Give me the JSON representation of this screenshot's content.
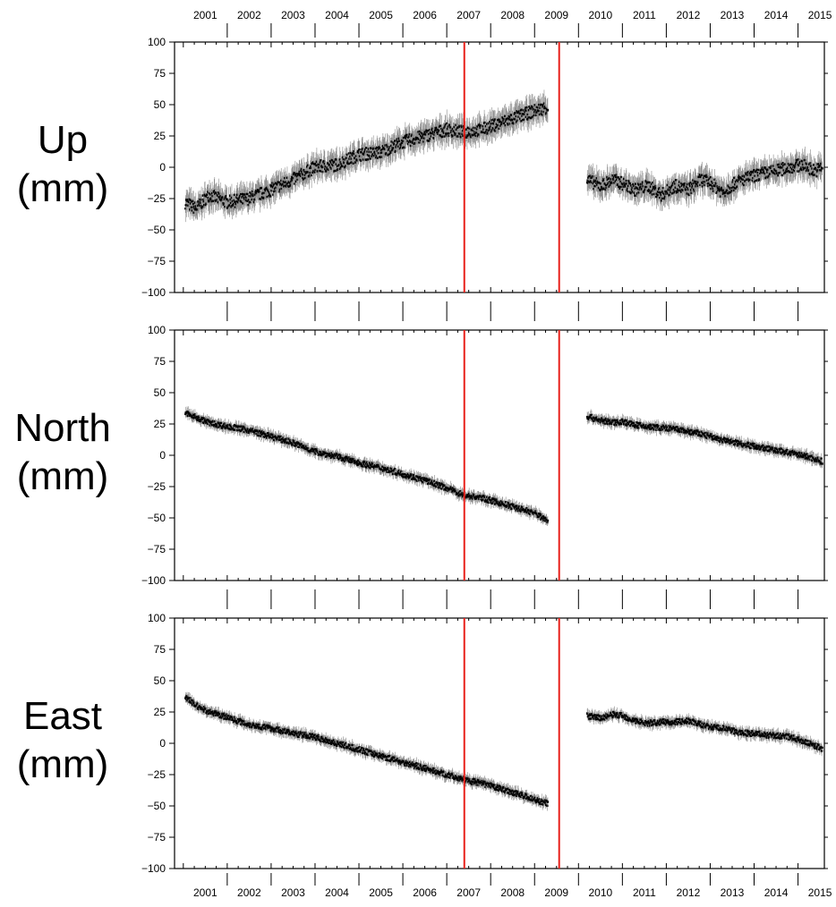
{
  "chart_data": [
    {
      "type": "scatter",
      "panel_label": [
        "Up",
        "(mm)"
      ],
      "ylim": [
        -100,
        100
      ],
      "yticks": [
        -100,
        -75,
        -50,
        -25,
        0,
        25,
        50,
        75,
        100
      ],
      "error_bars": true,
      "series": [
        {
          "x": [
            2001.05,
            2001.3,
            2001.6,
            2002.0,
            2002.5,
            2003.0,
            2003.5,
            2004.0,
            2004.5,
            2005.0,
            2005.5,
            2006.0,
            2006.5,
            2007.0,
            2007.4,
            2007.8,
            2008.2,
            2008.6,
            2009.0,
            2009.3
          ],
          "y": [
            -28,
            -33,
            -22,
            -28,
            -25,
            -18,
            -10,
            0,
            2,
            10,
            12,
            20,
            25,
            30,
            28,
            30,
            35,
            40,
            45,
            48
          ]
        },
        {
          "x": [
            2010.2,
            2010.5,
            2010.8,
            2011.0,
            2011.3,
            2011.6,
            2011.9,
            2012.2,
            2012.5,
            2012.8,
            2013.0,
            2013.3,
            2013.6,
            2013.9,
            2014.2,
            2014.5,
            2014.8,
            2015.1,
            2015.4,
            2015.55
          ],
          "y": [
            -10,
            -15,
            -10,
            -13,
            -18,
            -15,
            -22,
            -15,
            -18,
            -10,
            -12,
            -20,
            -12,
            -8,
            -5,
            -3,
            0,
            2,
            -3,
            0
          ]
        }
      ]
    },
    {
      "type": "scatter",
      "panel_label": [
        "North",
        "(mm)"
      ],
      "ylim": [
        -100,
        100
      ],
      "yticks": [
        -100,
        -75,
        -50,
        -25,
        0,
        25,
        50,
        75,
        100
      ],
      "error_bars": true,
      "series": [
        {
          "x": [
            2001.05,
            2001.3,
            2001.6,
            2002.0,
            2002.5,
            2003.0,
            2003.5,
            2004.0,
            2004.5,
            2005.0,
            2005.5,
            2006.0,
            2006.5,
            2007.0,
            2007.4,
            2007.8,
            2008.2,
            2008.6,
            2009.0,
            2009.3
          ],
          "y": [
            34,
            30,
            26,
            23,
            20,
            15,
            10,
            3,
            -1,
            -6,
            -10,
            -15,
            -20,
            -26,
            -32,
            -34,
            -38,
            -42,
            -46,
            -52
          ]
        },
        {
          "x": [
            2010.2,
            2010.5,
            2010.8,
            2011.0,
            2011.2,
            2011.5,
            2011.9,
            2012.2,
            2012.5,
            2012.8,
            2013.0,
            2013.3,
            2013.6,
            2013.9,
            2014.2,
            2014.5,
            2014.8,
            2015.1,
            2015.4,
            2015.55
          ],
          "y": [
            31,
            28,
            26,
            27,
            25,
            23,
            22,
            21,
            19,
            17,
            15,
            12,
            10,
            8,
            6,
            4,
            2,
            0,
            -3,
            -5
          ]
        }
      ]
    },
    {
      "type": "scatter",
      "panel_label": [
        "East",
        "(mm)"
      ],
      "ylim": [
        -100,
        100
      ],
      "yticks": [
        -100,
        -75,
        -50,
        -25,
        0,
        25,
        50,
        75,
        100
      ],
      "error_bars": true,
      "series": [
        {
          "x": [
            2001.05,
            2001.3,
            2001.6,
            2002.0,
            2002.5,
            2003.0,
            2003.5,
            2004.0,
            2004.5,
            2005.0,
            2005.5,
            2006.0,
            2006.5,
            2007.0,
            2007.4,
            2007.8,
            2008.2,
            2008.6,
            2009.0,
            2009.3
          ],
          "y": [
            37,
            30,
            25,
            21,
            15,
            12,
            8,
            5,
            0,
            -5,
            -10,
            -15,
            -20,
            -25,
            -29,
            -32,
            -36,
            -40,
            -45,
            -48
          ]
        },
        {
          "x": [
            2010.2,
            2010.5,
            2010.8,
            2011.0,
            2011.3,
            2011.6,
            2011.9,
            2012.2,
            2012.5,
            2012.8,
            2013.0,
            2013.3,
            2013.6,
            2013.9,
            2014.2,
            2014.5,
            2014.8,
            2015.1,
            2015.4,
            2015.55
          ],
          "y": [
            22,
            20,
            23,
            22,
            18,
            16,
            17,
            17,
            18,
            15,
            13,
            12,
            9,
            8,
            7,
            6,
            5,
            2,
            -2,
            -4
          ]
        }
      ]
    }
  ],
  "x_axis": {
    "xlim": [
      2000.8,
      2015.6
    ],
    "year_labels": [
      "2001",
      "2002",
      "2003",
      "2004",
      "2005",
      "2006",
      "2007",
      "2008",
      "2009",
      "2010",
      "2011",
      "2012",
      "2013",
      "2014",
      "2015"
    ],
    "year_positions": [
      2001.0,
      2002.0,
      2003.0,
      2004.0,
      2005.0,
      2006.0,
      2007.0,
      2008.0,
      2009.0,
      2010.0,
      2011.0,
      2012.0,
      2013.0,
      2014.0,
      2015.0
    ]
  },
  "event_lines": {
    "x": [
      2007.4,
      2009.56
    ],
    "color": "#e8201a"
  },
  "colors": {
    "marker": "#000000",
    "error_bar": "#8a8a8a",
    "event_line": "#e8201a"
  }
}
